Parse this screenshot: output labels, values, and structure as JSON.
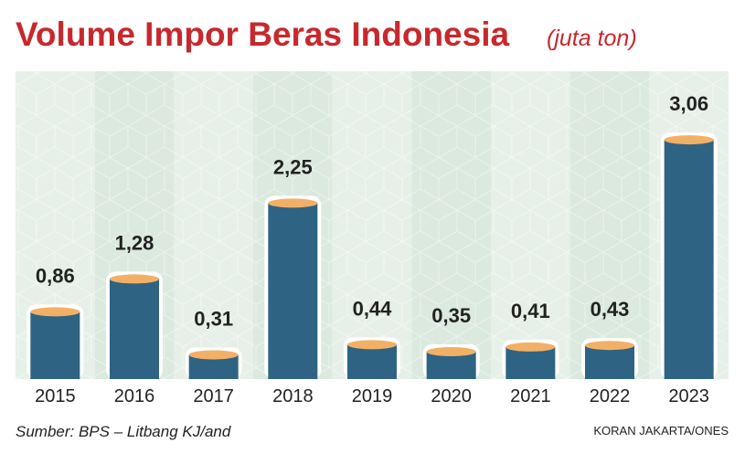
{
  "chart_data": {
    "type": "bar",
    "title": "Volume Impor Beras Indonesia",
    "subtitle": "(juta ton)",
    "categories": [
      "2015",
      "2016",
      "2017",
      "2018",
      "2019",
      "2020",
      "2021",
      "2022",
      "2023"
    ],
    "values": [
      0.86,
      1.28,
      0.31,
      2.25,
      0.44,
      0.35,
      0.41,
      0.43,
      3.06
    ],
    "value_labels": [
      "0,86",
      "1,28",
      "0,31",
      "2,25",
      "0,44",
      "0,35",
      "0,41",
      "0,43",
      "3,06"
    ],
    "color": "#2e6384",
    "top_color": "#f2b066",
    "source": "Sumber: BPS – Litbang KJ/and",
    "credit": "KORAN JAKARTA/ONES"
  }
}
